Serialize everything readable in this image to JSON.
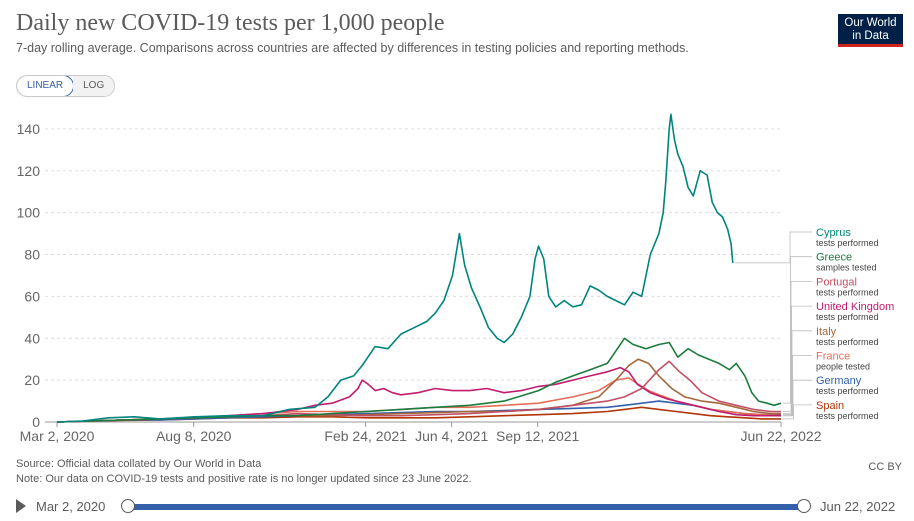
{
  "header": {
    "title": "Daily new COVID-19 tests per 1,000 people",
    "subtitle": "7-day rolling average. Comparisons across countries are affected by differences in testing policies and reporting methods.",
    "logo_line1": "Our World",
    "logo_line2": "in Data"
  },
  "scale_toggle": {
    "linear": "LINEAR",
    "log": "LOG"
  },
  "footer": {
    "source": "Source: Official data collated by Our World in Data",
    "note": "Note: Our data on COVID-19 tests and positive rate is no longer updated since 23 June 2022.",
    "license": "CC BY"
  },
  "timeline": {
    "start": "Mar 2, 2020",
    "end": "Jun 22, 2022"
  },
  "colors": {
    "accent": "#3360a9",
    "logo_bg": "#002147",
    "logo_stripe": "#ce261e"
  },
  "chart_data": {
    "type": "line",
    "title": "Daily new COVID-19 tests per 1,000 people",
    "xlabel": "",
    "ylabel": "",
    "ylim": [
      0,
      150
    ],
    "yticks": [
      0,
      20,
      40,
      60,
      80,
      100,
      120,
      140
    ],
    "xdomain": [
      0,
      842
    ],
    "xticks": [
      {
        "t": 0,
        "label": "Mar 2, 2020"
      },
      {
        "t": 159,
        "label": "Aug 8, 2020"
      },
      {
        "t": 359,
        "label": "Feb 24, 2021"
      },
      {
        "t": 459,
        "label": "Jun 4, 2021"
      },
      {
        "t": 559,
        "label": "Sep 12, 2021"
      },
      {
        "t": 842,
        "label": "Jun 22, 2022"
      }
    ],
    "series": [
      {
        "name": "Cyprus",
        "note": "tests performed",
        "color": "#00847e",
        "points": [
          [
            0,
            0
          ],
          [
            30,
            0.5
          ],
          [
            60,
            2
          ],
          [
            90,
            2.5
          ],
          [
            120,
            1.5
          ],
          [
            160,
            2.5
          ],
          [
            200,
            3
          ],
          [
            240,
            3
          ],
          [
            270,
            6
          ],
          [
            300,
            7
          ],
          [
            315,
            12
          ],
          [
            330,
            20
          ],
          [
            345,
            22
          ],
          [
            355,
            27
          ],
          [
            360,
            30
          ],
          [
            370,
            36
          ],
          [
            385,
            35
          ],
          [
            400,
            42
          ],
          [
            415,
            45
          ],
          [
            430,
            48
          ],
          [
            440,
            52
          ],
          [
            450,
            58
          ],
          [
            460,
            70
          ],
          [
            468,
            90
          ],
          [
            474,
            75
          ],
          [
            482,
            64
          ],
          [
            492,
            55
          ],
          [
            502,
            45
          ],
          [
            512,
            40
          ],
          [
            520,
            38
          ],
          [
            530,
            42
          ],
          [
            540,
            50
          ],
          [
            550,
            60
          ],
          [
            556,
            78
          ],
          [
            560,
            84
          ],
          [
            566,
            78
          ],
          [
            572,
            60
          ],
          [
            580,
            55
          ],
          [
            590,
            58
          ],
          [
            600,
            55
          ],
          [
            610,
            56
          ],
          [
            620,
            65
          ],
          [
            630,
            63
          ],
          [
            640,
            60
          ],
          [
            650,
            58
          ],
          [
            660,
            56
          ],
          [
            670,
            62
          ],
          [
            680,
            60
          ],
          [
            690,
            80
          ],
          [
            700,
            90
          ],
          [
            705,
            100
          ],
          [
            708,
            115
          ],
          [
            712,
            140
          ],
          [
            714,
            147
          ],
          [
            718,
            135
          ],
          [
            722,
            128
          ],
          [
            728,
            122
          ],
          [
            734,
            112
          ],
          [
            740,
            108
          ],
          [
            748,
            120
          ],
          [
            756,
            118
          ],
          [
            762,
            105
          ],
          [
            768,
            100
          ],
          [
            774,
            98
          ],
          [
            780,
            92
          ],
          [
            784,
            85
          ],
          [
            786,
            76
          ]
        ]
      },
      {
        "name": "Greece",
        "note": "samples tested",
        "color": "#1c7c3e",
        "points": [
          [
            0,
            0
          ],
          [
            40,
            0.5
          ],
          [
            80,
            1
          ],
          [
            120,
            1.5
          ],
          [
            160,
            2
          ],
          [
            200,
            2.5
          ],
          [
            240,
            3
          ],
          [
            280,
            3
          ],
          [
            320,
            4
          ],
          [
            360,
            5
          ],
          [
            400,
            6
          ],
          [
            440,
            7
          ],
          [
            480,
            8
          ],
          [
            520,
            10
          ],
          [
            560,
            15
          ],
          [
            580,
            19
          ],
          [
            600,
            22
          ],
          [
            620,
            25
          ],
          [
            640,
            28
          ],
          [
            660,
            40
          ],
          [
            670,
            37
          ],
          [
            685,
            35
          ],
          [
            700,
            37
          ],
          [
            712,
            38
          ],
          [
            722,
            31
          ],
          [
            734,
            35
          ],
          [
            746,
            32
          ],
          [
            758,
            30
          ],
          [
            770,
            28
          ],
          [
            782,
            25
          ],
          [
            790,
            28
          ],
          [
            800,
            22
          ],
          [
            808,
            14
          ],
          [
            816,
            10
          ],
          [
            826,
            9
          ],
          [
            834,
            8
          ],
          [
            842,
            9
          ]
        ]
      },
      {
        "name": "Portugal",
        "note": "tests performed",
        "color": "#c15065",
        "points": [
          [
            0,
            0
          ],
          [
            40,
            0.5
          ],
          [
            80,
            1
          ],
          [
            120,
            1.5
          ],
          [
            160,
            2
          ],
          [
            200,
            2.5
          ],
          [
            240,
            3
          ],
          [
            280,
            4
          ],
          [
            320,
            3.5
          ],
          [
            360,
            3
          ],
          [
            400,
            3
          ],
          [
            440,
            3.5
          ],
          [
            480,
            4
          ],
          [
            520,
            5
          ],
          [
            560,
            6
          ],
          [
            600,
            8
          ],
          [
            640,
            10
          ],
          [
            660,
            12
          ],
          [
            680,
            16
          ],
          [
            700,
            25
          ],
          [
            712,
            29
          ],
          [
            724,
            24
          ],
          [
            736,
            20
          ],
          [
            750,
            14
          ],
          [
            770,
            10
          ],
          [
            790,
            8
          ],
          [
            810,
            6
          ],
          [
            830,
            5
          ],
          [
            842,
            5
          ]
        ]
      },
      {
        "name": "United Kingdom",
        "note": "tests performed",
        "color": "#c21b70",
        "points": [
          [
            0,
            0
          ],
          [
            40,
            0.5
          ],
          [
            80,
            1
          ],
          [
            120,
            1.5
          ],
          [
            160,
            2
          ],
          [
            200,
            3
          ],
          [
            240,
            4
          ],
          [
            260,
            5
          ],
          [
            280,
            6
          ],
          [
            300,
            8
          ],
          [
            320,
            9
          ],
          [
            340,
            12
          ],
          [
            350,
            16
          ],
          [
            355,
            20
          ],
          [
            362,
            18
          ],
          [
            370,
            15
          ],
          [
            380,
            16
          ],
          [
            390,
            14
          ],
          [
            400,
            13
          ],
          [
            420,
            14
          ],
          [
            440,
            16
          ],
          [
            460,
            15
          ],
          [
            480,
            15
          ],
          [
            500,
            16
          ],
          [
            520,
            14
          ],
          [
            540,
            15
          ],
          [
            560,
            17
          ],
          [
            580,
            18
          ],
          [
            600,
            20
          ],
          [
            620,
            22
          ],
          [
            640,
            24
          ],
          [
            655,
            26
          ],
          [
            665,
            24
          ],
          [
            675,
            18
          ],
          [
            690,
            14
          ],
          [
            710,
            11
          ],
          [
            730,
            9
          ],
          [
            750,
            7
          ],
          [
            770,
            5
          ],
          [
            790,
            3.5
          ],
          [
            810,
            3
          ],
          [
            830,
            3
          ],
          [
            842,
            3
          ]
        ]
      },
      {
        "name": "Italy",
        "note": "tests performed",
        "color": "#a5663b",
        "points": [
          [
            0,
            0
          ],
          [
            40,
            0.5
          ],
          [
            80,
            1
          ],
          [
            120,
            1.5
          ],
          [
            160,
            2
          ],
          [
            200,
            2.5
          ],
          [
            240,
            3
          ],
          [
            280,
            3
          ],
          [
            320,
            3
          ],
          [
            360,
            3.5
          ],
          [
            400,
            4
          ],
          [
            440,
            4.5
          ],
          [
            480,
            5
          ],
          [
            520,
            5
          ],
          [
            560,
            6
          ],
          [
            600,
            8
          ],
          [
            630,
            12
          ],
          [
            650,
            20
          ],
          [
            665,
            27
          ],
          [
            676,
            30
          ],
          [
            688,
            28
          ],
          [
            700,
            22
          ],
          [
            715,
            16
          ],
          [
            730,
            12
          ],
          [
            750,
            10
          ],
          [
            770,
            9
          ],
          [
            790,
            7
          ],
          [
            810,
            5
          ],
          [
            830,
            4
          ],
          [
            842,
            4
          ]
        ]
      },
      {
        "name": "France",
        "note": "people tested",
        "color": "#e56e5a",
        "points": [
          [
            0,
            0
          ],
          [
            40,
            0.5
          ],
          [
            80,
            1
          ],
          [
            120,
            1.5
          ],
          [
            160,
            2
          ],
          [
            200,
            3
          ],
          [
            240,
            4
          ],
          [
            280,
            5
          ],
          [
            320,
            5
          ],
          [
            360,
            5
          ],
          [
            400,
            6
          ],
          [
            440,
            7
          ],
          [
            480,
            7
          ],
          [
            520,
            8
          ],
          [
            560,
            9
          ],
          [
            600,
            12
          ],
          [
            630,
            15
          ],
          [
            650,
            20
          ],
          [
            665,
            21
          ],
          [
            676,
            18
          ],
          [
            688,
            15
          ],
          [
            700,
            13
          ],
          [
            720,
            10
          ],
          [
            740,
            8
          ],
          [
            760,
            6
          ],
          [
            780,
            5
          ],
          [
            800,
            4
          ],
          [
            820,
            3.5
          ],
          [
            842,
            3
          ]
        ]
      },
      {
        "name": "Germany",
        "note": "tests performed",
        "color": "#3360a9",
        "points": [
          [
            0,
            0
          ],
          [
            40,
            0.5
          ],
          [
            80,
            1
          ],
          [
            120,
            1
          ],
          [
            160,
            1.5
          ],
          [
            200,
            2
          ],
          [
            240,
            2.5
          ],
          [
            280,
            3
          ],
          [
            320,
            3.5
          ],
          [
            360,
            4
          ],
          [
            400,
            4.5
          ],
          [
            440,
            5
          ],
          [
            480,
            5
          ],
          [
            520,
            5.5
          ],
          [
            560,
            6
          ],
          [
            600,
            6.5
          ],
          [
            640,
            7
          ],
          [
            660,
            8
          ],
          [
            680,
            9
          ],
          [
            700,
            10
          ],
          [
            720,
            9
          ],
          [
            740,
            8
          ],
          [
            760,
            6
          ],
          [
            780,
            5
          ],
          [
            800,
            4
          ],
          [
            820,
            3.5
          ],
          [
            842,
            3.5
          ]
        ]
      },
      {
        "name": "Spain",
        "note": "tests performed",
        "color": "#b13507",
        "points": [
          [
            0,
            0
          ],
          [
            40,
            0.5
          ],
          [
            80,
            0.8
          ],
          [
            120,
            1
          ],
          [
            160,
            1.5
          ],
          [
            200,
            2
          ],
          [
            240,
            2
          ],
          [
            280,
            2.5
          ],
          [
            320,
            2.5
          ],
          [
            360,
            2
          ],
          [
            400,
            2
          ],
          [
            440,
            2
          ],
          [
            480,
            2.5
          ],
          [
            520,
            3
          ],
          [
            560,
            3.5
          ],
          [
            600,
            4
          ],
          [
            640,
            5
          ],
          [
            660,
            6
          ],
          [
            680,
            7
          ],
          [
            700,
            6
          ],
          [
            720,
            5
          ],
          [
            740,
            4
          ],
          [
            760,
            3
          ],
          [
            780,
            2.5
          ],
          [
            800,
            2
          ],
          [
            820,
            1.5
          ],
          [
            842,
            1.5
          ]
        ]
      }
    ]
  }
}
